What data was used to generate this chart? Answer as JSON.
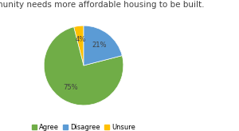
{
  "title": "My community needs more affordable housing to be built.",
  "labels": [
    "Agree",
    "Disagree",
    "Unsure"
  ],
  "values": [
    75,
    21,
    4
  ],
  "colors": [
    "#70ad47",
    "#5b9bd5",
    "#ffc000"
  ],
  "autopct_fontsize": 6,
  "title_fontsize": 7.5,
  "legend_fontsize": 6,
  "startangle": 90,
  "background_color": "#ffffff",
  "text_color": "#404040",
  "pct_text_color": "#404040"
}
